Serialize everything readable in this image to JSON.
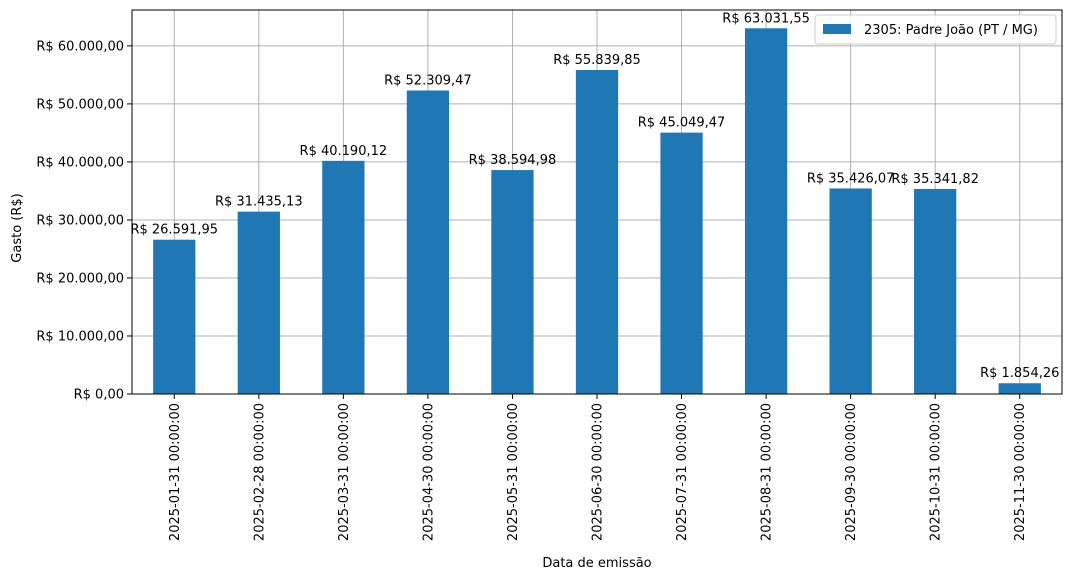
{
  "chart_data": {
    "type": "bar",
    "categories": [
      "2025-01-31 00:00:00",
      "2025-02-28 00:00:00",
      "2025-03-31 00:00:00",
      "2025-04-30 00:00:00",
      "2025-05-31 00:00:00",
      "2025-06-30 00:00:00",
      "2025-07-31 00:00:00",
      "2025-08-31 00:00:00",
      "2025-09-30 00:00:00",
      "2025-10-31 00:00:00",
      "2025-11-30 00:00:00"
    ],
    "series": [
      {
        "name": "2305: Padre João (PT / MG)",
        "color": "#1f77b4",
        "values": [
          26591.95,
          31435.13,
          40190.12,
          52309.47,
          38594.98,
          55839.85,
          45049.47,
          63031.55,
          35426.07,
          35341.82,
          1854.26
        ],
        "labels": [
          "R$ 26.591,95",
          "R$ 31.435,13",
          "R$ 40.190,12",
          "R$ 52.309,47",
          "R$ 38.594,98",
          "R$ 55.839,85",
          "R$ 45.049,47",
          "R$ 63.031,55",
          "R$ 35.426,07",
          "R$ 35.341,82",
          "R$ 1.854,26"
        ]
      }
    ],
    "xlabel": "Data de emissão",
    "ylabel": "Gasto (R$)",
    "ylim": [
      0,
      66184
    ],
    "yticks": [
      0,
      10000,
      20000,
      30000,
      40000,
      50000,
      60000
    ],
    "ytick_labels": [
      "R$ 0,00",
      "R$ 10.000,00",
      "R$ 20.000,00",
      "R$ 30.000,00",
      "R$ 40.000,00",
      "R$ 50.000,00",
      "R$ 60.000,00"
    ],
    "grid": true,
    "legend_position": "top-right"
  }
}
